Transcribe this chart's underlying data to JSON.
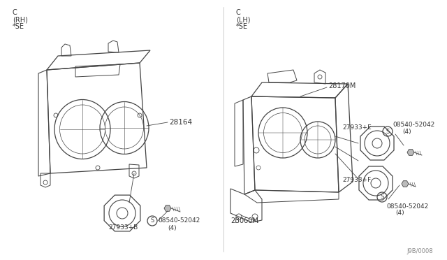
{
  "bg_color": "#ffffff",
  "line_color": "#444444",
  "text_color": "#333333",
  "fig_width": 6.4,
  "fig_height": 3.72,
  "dpi": 100,
  "title_bottom": "J9B/0008",
  "left_label_lines": [
    "C",
    "(RH)",
    "*SE"
  ],
  "right_label_lines": [
    "C",
    "(LH)",
    "*SE"
  ],
  "left_parts": {
    "main_part": "28164",
    "speaker": "27933+B",
    "screw": "08540-52042",
    "screw_qty": "(4)"
  },
  "right_parts": {
    "main_part": "28170M",
    "bracket": "2B060M",
    "speaker_e": "27933+E",
    "speaker_f": "27933+F",
    "screw_e": "08540-52042",
    "screw_e_qty": "(4)",
    "screw_f": "08540-52042",
    "screw_f_qty": "(4)"
  }
}
